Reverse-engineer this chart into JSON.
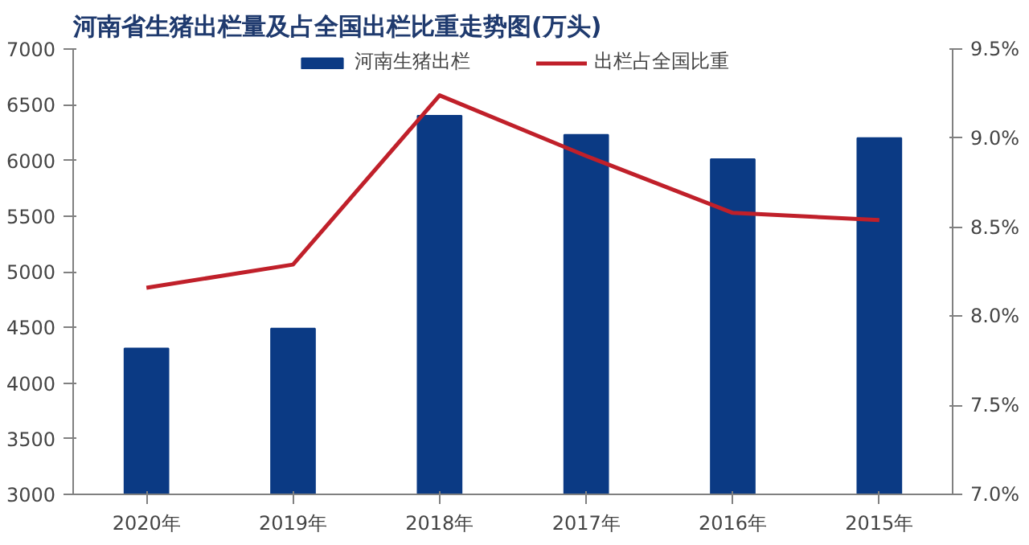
{
  "chart_data": {
    "type": "bar",
    "title": "河南省生猪出栏量及占全国出栏比重走势图(万头)",
    "categories": [
      "2020年",
      "2019年",
      "2018年",
      "2017年",
      "2016年",
      "2015年"
    ],
    "series": [
      {
        "name": "河南生猪出栏",
        "color": "#0b3a84",
        "values": [
          4310,
          4490,
          6400,
          6230,
          6010,
          6200
        ]
      },
      {
        "name": "出栏占全国比重",
        "type": "line",
        "axis": "y2",
        "color": "#c0202a",
        "values": [
          8.16,
          8.29,
          9.24,
          8.9,
          8.58,
          8.54
        ]
      }
    ],
    "ylim": [
      3000,
      7000
    ],
    "yticks": [
      3000,
      3500,
      4000,
      4500,
      5000,
      5500,
      6000,
      6500,
      7000
    ],
    "y2lim": [
      7.0,
      9.5
    ],
    "y2ticks": [
      {
        "value": 7.0,
        "label": "7.0%"
      },
      {
        "value": 7.5,
        "label": "7.5%"
      },
      {
        "value": 8.0,
        "label": "8.0%"
      },
      {
        "value": 8.5,
        "label": "8.5%"
      },
      {
        "value": 9.0,
        "label": "9.0%"
      },
      {
        "value": 9.5,
        "label": "9.5%"
      }
    ],
    "grid": false,
    "legend": "top",
    "marker": "none",
    "line_style": "solid"
  }
}
